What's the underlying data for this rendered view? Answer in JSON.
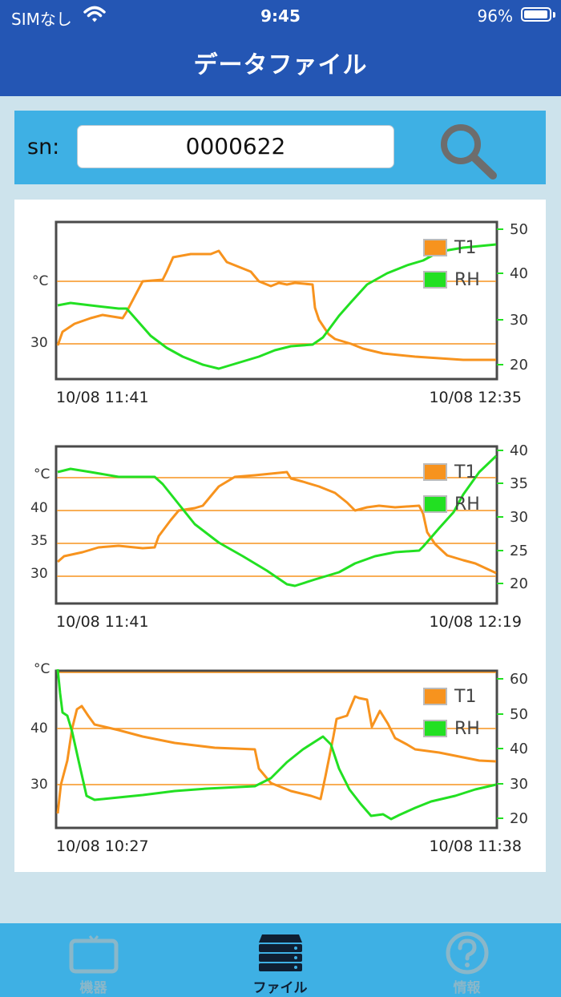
{
  "status": {
    "carrier": "SIMなし",
    "time": "9:45",
    "battery": "96%",
    "battery_level": 0.96
  },
  "header": {
    "title": "データファイル"
  },
  "search": {
    "label": "sn:",
    "value": "0000622"
  },
  "charts": [
    {
      "left_axis_label": "°C",
      "left_ticks": [
        "30"
      ],
      "right_ticks": [
        "50",
        "40",
        "30",
        "20"
      ],
      "legend": [
        "T1",
        "RH"
      ],
      "x_start": "10/08 11:41",
      "x_end": "10/08 12:35"
    },
    {
      "left_axis_label": "°C",
      "left_ticks": [
        "40",
        "35",
        "30"
      ],
      "right_ticks": [
        "40",
        "35",
        "30",
        "25",
        "20"
      ],
      "legend": [
        "T1",
        "RH"
      ],
      "x_start": "10/08 11:41",
      "x_end": "10/08 12:19"
    },
    {
      "left_axis_label": "°C",
      "left_ticks": [
        "40",
        "30"
      ],
      "right_ticks": [
        "60",
        "50",
        "40",
        "30",
        "20"
      ],
      "legend": [
        "T1",
        "RH"
      ],
      "x_start": "10/08 10:27",
      "x_end": "10/08 11:38"
    }
  ],
  "series_colors": {
    "T1": "#f7931e",
    "RH": "#22e022"
  },
  "tabbar": {
    "items": [
      {
        "label": "機器",
        "icon": "tv-icon",
        "color": "#8ab7c9"
      },
      {
        "label": "ファイル",
        "icon": "server-icon",
        "color": "#0f1f33"
      },
      {
        "label": "情報",
        "icon": "question-icon",
        "color": "#8ab7c9"
      }
    ]
  }
}
